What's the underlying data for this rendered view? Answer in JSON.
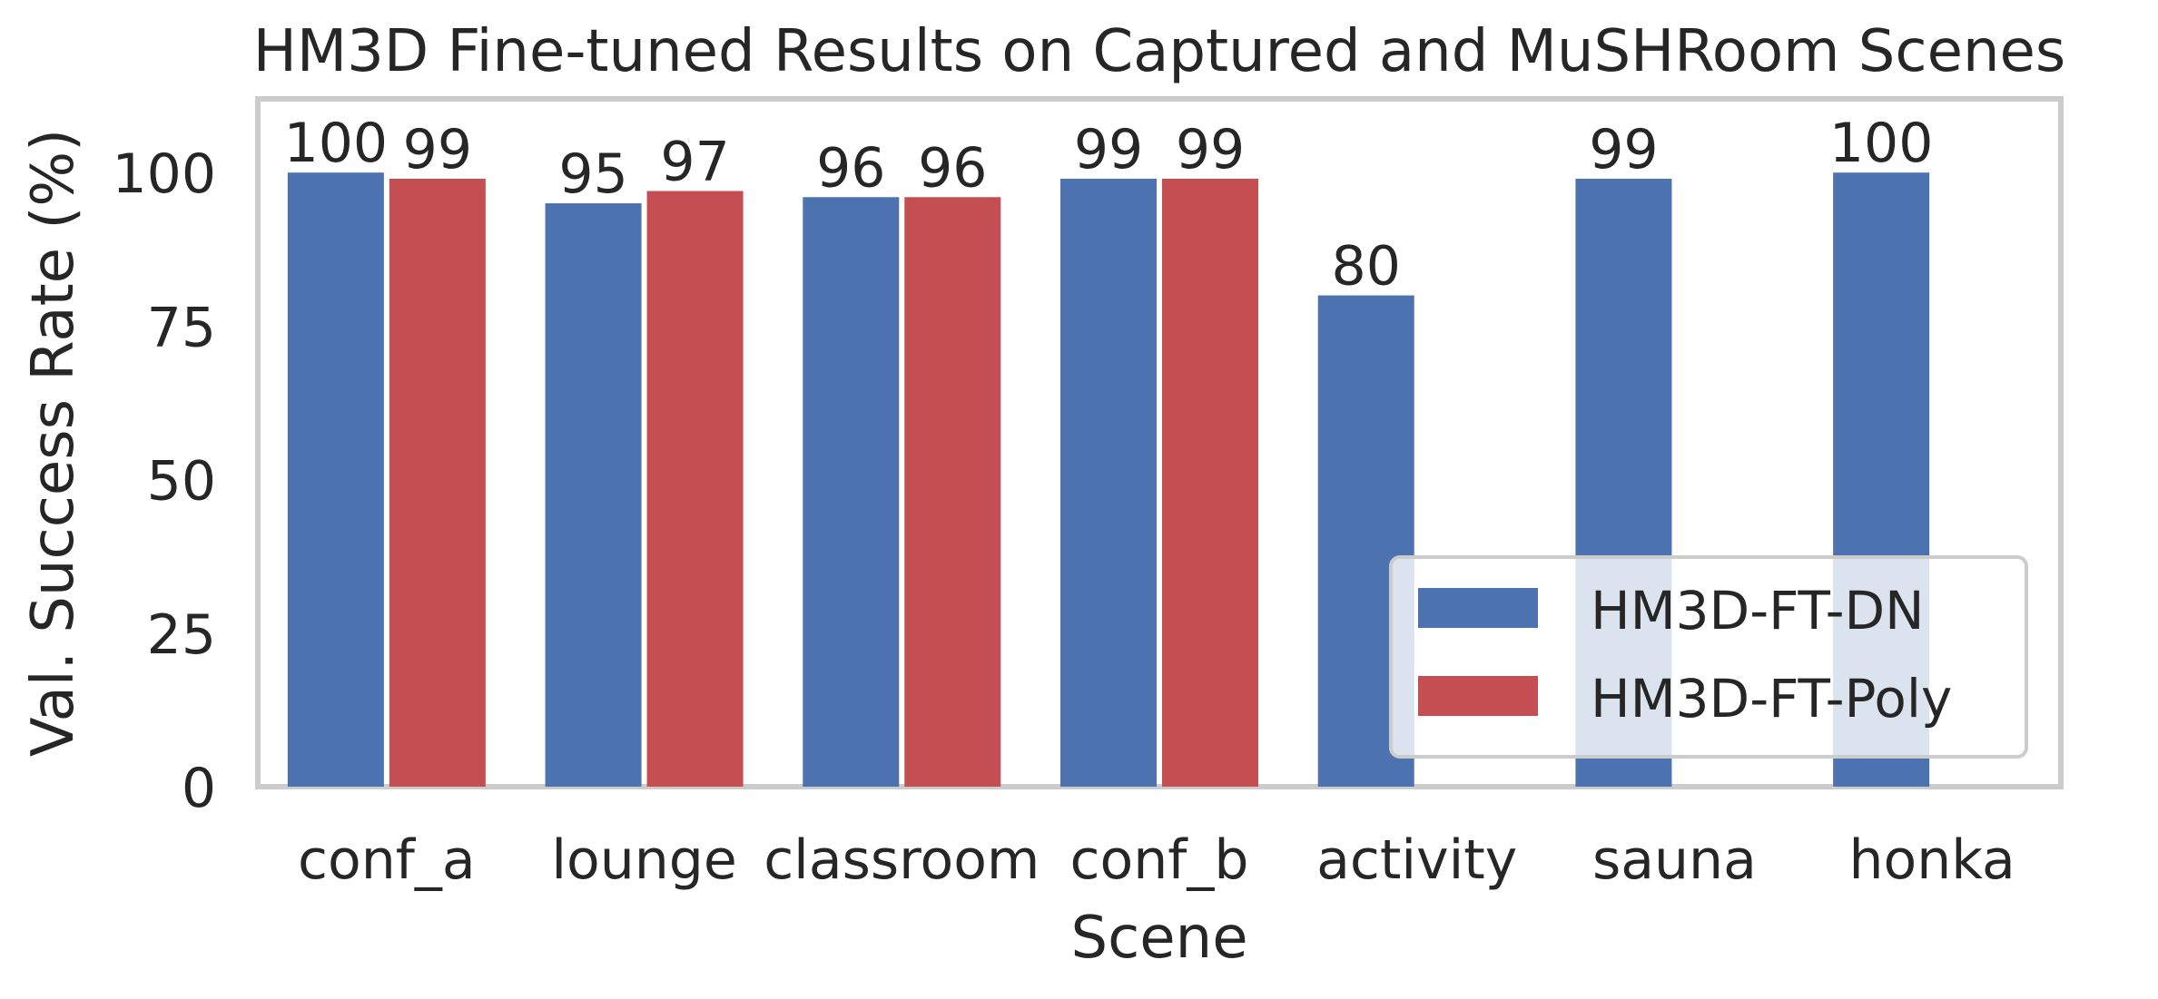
{
  "chart_data": {
    "type": "bar",
    "title": "HM3D Fine-tuned Results on Captured and MuSHRoom Scenes",
    "xlabel": "Scene",
    "ylabel": "Val. Success Rate (%)",
    "ylim": [
      0,
      112
    ],
    "yticks": [
      0,
      25,
      50,
      75,
      100
    ],
    "grid": false,
    "legend_position": "lower-right",
    "categories": [
      "conf_a",
      "lounge",
      "classroom",
      "conf_b",
      "activity",
      "sauna",
      "honka"
    ],
    "series": [
      {
        "name": "HM3D-FT-DN",
        "color": "#4c72b0",
        "values": [
          100,
          95,
          96,
          99,
          80,
          99,
          100
        ],
        "labels": [
          "100",
          "95",
          "96",
          "99",
          "80",
          "99",
          "100"
        ]
      },
      {
        "name": "HM3D-FT-Poly",
        "color": "#c44e52",
        "values": [
          99,
          97,
          96,
          99,
          null,
          null,
          null
        ],
        "labels": [
          "99",
          "97",
          "96",
          "99",
          "",
          "",
          ""
        ]
      }
    ]
  }
}
